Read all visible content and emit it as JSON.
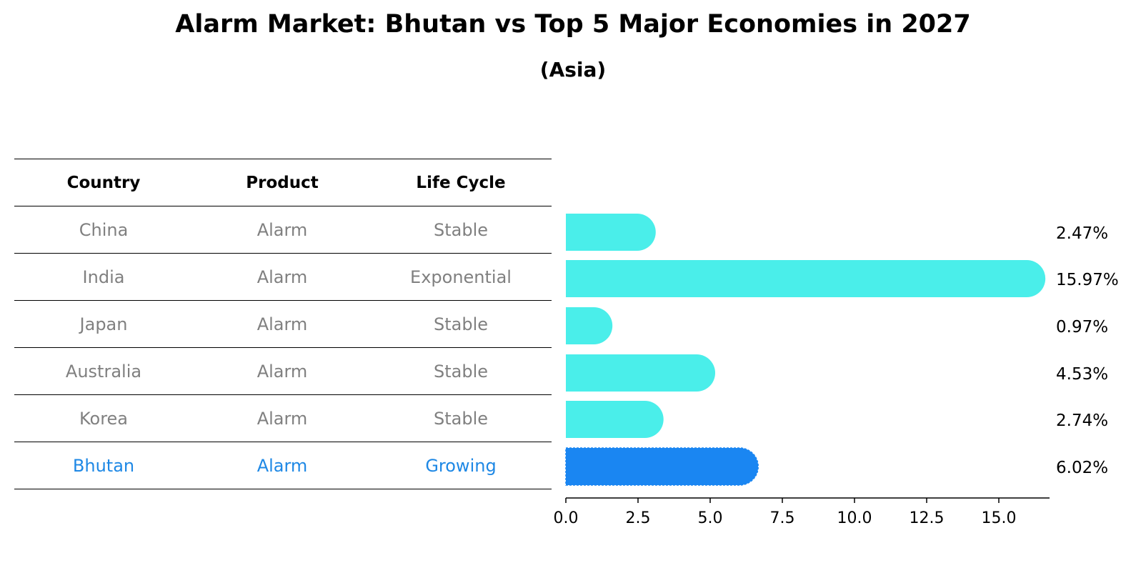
{
  "title": "Alarm Market: Bhutan vs Top 5 Major Economies in 2027",
  "subtitle": "(Asia)",
  "table": {
    "headers": [
      "Country",
      "Product",
      "Life Cycle"
    ],
    "rows": [
      {
        "country": "China",
        "product": "Alarm",
        "life_cycle": "Stable"
      },
      {
        "country": "India",
        "product": "Alarm",
        "life_cycle": "Exponential"
      },
      {
        "country": "Japan",
        "product": "Alarm",
        "life_cycle": "Stable"
      },
      {
        "country": "Australia",
        "product": "Alarm",
        "life_cycle": "Stable"
      },
      {
        "country": "Korea",
        "product": "Alarm",
        "life_cycle": "Stable"
      },
      {
        "country": "Bhutan",
        "product": "Alarm",
        "life_cycle": "Growing"
      }
    ]
  },
  "chart_data": {
    "type": "bar",
    "orientation": "horizontal",
    "title": "Alarm Market: Bhutan vs Top 5 Major Economies in 2027",
    "subtitle": "(Asia)",
    "categories": [
      "China",
      "India",
      "Japan",
      "Australia",
      "Korea",
      "Bhutan"
    ],
    "values": [
      2.47,
      15.97,
      0.97,
      4.53,
      2.74,
      6.02
    ],
    "value_labels": [
      "2.47%",
      "15.97%",
      "0.97%",
      "4.53%",
      "2.74%",
      "6.02%"
    ],
    "highlight": "Bhutan",
    "xlim": [
      0,
      16.8
    ],
    "xticks": [
      0.0,
      2.5,
      5.0,
      7.5,
      10.0,
      12.5,
      15.0
    ],
    "xtick_labels": [
      "0.0",
      "2.5",
      "5.0",
      "7.5",
      "10.0",
      "12.5",
      "15.0"
    ],
    "xlabel": "",
    "ylabel": "",
    "colors": {
      "bar": "#4aeeea",
      "highlight": "#1a86f2",
      "highlight_text": "#1e88e5",
      "muted_text": "#808080"
    }
  }
}
